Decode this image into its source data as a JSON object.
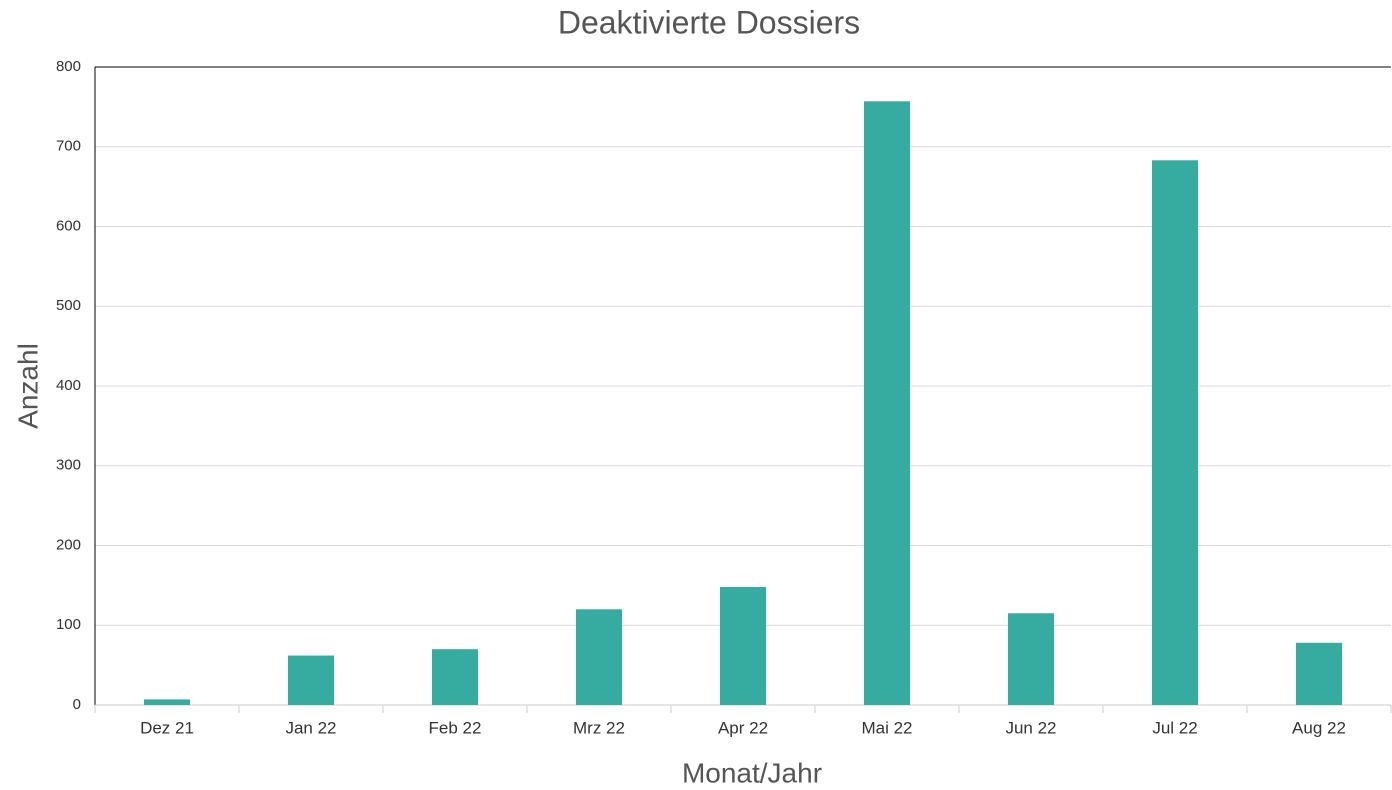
{
  "chart_data": {
    "type": "bar",
    "title": "Deaktivierte Dossiers",
    "x_label": "Monat/Jahr",
    "y_label": "Anzahl",
    "categories": [
      "Dez 21",
      "Jan 22",
      "Feb 22",
      "Mrz 22",
      "Apr 22",
      "Mai 22",
      "Jun 22",
      "Jul 22",
      "Aug 22"
    ],
    "values": [
      7,
      62,
      70,
      120,
      148,
      757,
      115,
      683,
      78
    ],
    "color": "#36ab9f",
    "ylim": [
      0,
      800
    ],
    "yticks": [
      0,
      100,
      200,
      300,
      400,
      500,
      600,
      700,
      800
    ],
    "grid": true
  }
}
